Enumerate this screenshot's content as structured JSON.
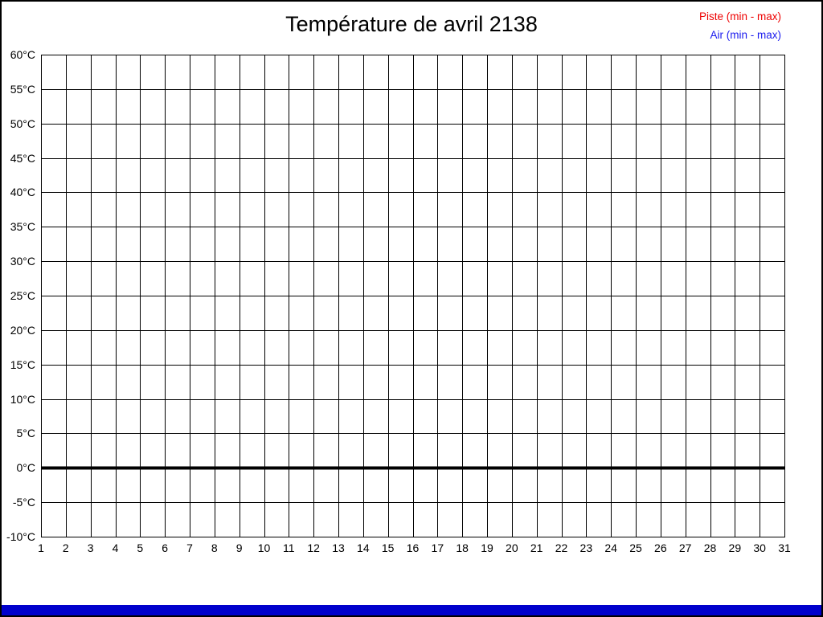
{
  "title": "Température de avril 2138",
  "legend": {
    "items": [
      {
        "label": "Piste (min - max)",
        "color": "#ee0000"
      },
      {
        "label": "Air (min - max)",
        "color": "#1a1aee"
      }
    ]
  },
  "axes": {
    "y_tick_labels": [
      "60°C",
      "55°C",
      "50°C",
      "45°C",
      "40°C",
      "35°C",
      "30°C",
      "25°C",
      "20°C",
      "15°C",
      "10°C",
      "5°C",
      "0°C",
      "-5°C",
      "-10°C"
    ],
    "x_tick_labels": [
      "1",
      "2",
      "3",
      "4",
      "5",
      "6",
      "7",
      "8",
      "9",
      "10",
      "11",
      "12",
      "13",
      "14",
      "15",
      "16",
      "17",
      "18",
      "19",
      "20",
      "21",
      "22",
      "23",
      "24",
      "25",
      "26",
      "27",
      "28",
      "29",
      "30",
      "31"
    ]
  },
  "chart_data": {
    "type": "line",
    "title": "Température de avril 2138",
    "x": [
      1,
      2,
      3,
      4,
      5,
      6,
      7,
      8,
      9,
      10,
      11,
      12,
      13,
      14,
      15,
      16,
      17,
      18,
      19,
      20,
      21,
      22,
      23,
      24,
      25,
      26,
      27,
      28,
      29,
      30,
      31
    ],
    "series": [
      {
        "name": "Piste (min - max)",
        "color": "#ee0000",
        "values": []
      },
      {
        "name": "Air (min - max)",
        "color": "#1a1aee",
        "values": []
      }
    ],
    "xlabel": "",
    "ylabel": "",
    "xlim": [
      1,
      31
    ],
    "ylim": [
      -10,
      60
    ],
    "ytick_step": 5,
    "grid": true,
    "legend_position": "top-right",
    "zero_line": {
      "value": 0,
      "color": "#000000",
      "width": 4
    },
    "note_empty": "no data points plotted"
  },
  "footer_bar_color": "#0000cc",
  "frame_color": "#000000"
}
